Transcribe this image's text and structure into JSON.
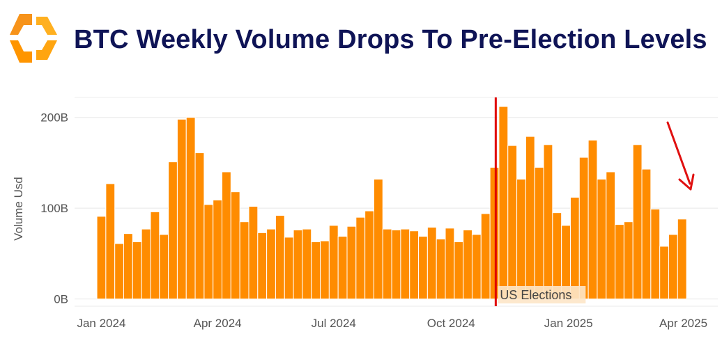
{
  "title": "BTC Weekly Volume Drops To Pre-Election Levels",
  "colors": {
    "bar": "#ff8c00",
    "marker": "#e00000",
    "title": "#0f1456",
    "arrow": "#e01010"
  },
  "logo_icon": "orange-hexagon-logo-icon",
  "chart_data": {
    "type": "bar",
    "title": "BTC Weekly Volume Drops To Pre-Election Levels",
    "ylabel": "Volume Usd",
    "xlabel": "",
    "ylim": [
      -8,
      222
    ],
    "yticks": [
      {
        "value": 0,
        "label": "0B"
      },
      {
        "value": 100,
        "label": "100B"
      },
      {
        "value": 200,
        "label": "200B"
      }
    ],
    "x_start": "2024-01-01",
    "xlim": [
      "2023-12-11",
      "2025-04-28"
    ],
    "xticks": [
      {
        "date": "2024-01-01",
        "label": "Jan 2024"
      },
      {
        "date": "2024-04-01",
        "label": "Apr 2024"
      },
      {
        "date": "2024-07-01",
        "label": "Jul 2024"
      },
      {
        "date": "2024-10-01",
        "label": "Oct 2024"
      },
      {
        "date": "2025-01-01",
        "label": "Jan 2025"
      },
      {
        "date": "2025-04-01",
        "label": "Apr 2025"
      }
    ],
    "unit": "B",
    "grid": true,
    "values": [
      91,
      127,
      61,
      72,
      63,
      77,
      96,
      71,
      151,
      198,
      200,
      161,
      104,
      109,
      140,
      118,
      85,
      102,
      73,
      77,
      92,
      68,
      76,
      77,
      63,
      64,
      81,
      69,
      80,
      90,
      97,
      132,
      77,
      76,
      77,
      75,
      69,
      79,
      66,
      78,
      63,
      76,
      71,
      94,
      145,
      212,
      169,
      132,
      179,
      145,
      170,
      95,
      81,
      112,
      156,
      175,
      132,
      140,
      82,
      85,
      170,
      143,
      99,
      58,
      71,
      88
    ],
    "annotations": [
      {
        "type": "vline",
        "date": "2024-11-05",
        "label": "US Elections"
      },
      {
        "type": "arrow",
        "description": "red downward arrow pointing at recent weeks"
      }
    ]
  }
}
